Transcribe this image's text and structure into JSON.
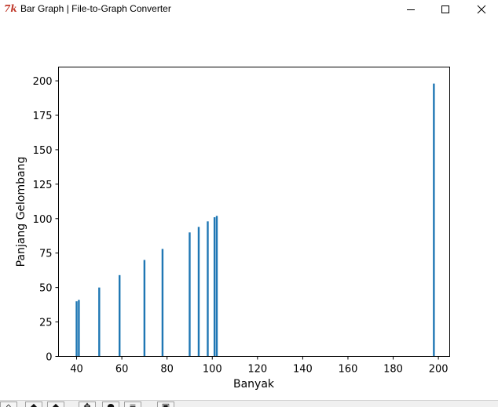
{
  "window": {
    "title": "Bar Graph | File-to-Graph Converter",
    "icon": "tk-feather-icon"
  },
  "controls": {
    "minimize": "minimize-icon",
    "maximize": "maximize-icon",
    "close": "close-icon"
  },
  "chart_data": {
    "type": "bar",
    "xlabel": "Banyak",
    "ylabel": "Panjang Gelombang",
    "xlim": [
      32,
      205
    ],
    "ylim": [
      0,
      210
    ],
    "x_ticks": [
      40,
      60,
      80,
      100,
      120,
      140,
      160,
      180,
      200
    ],
    "y_ticks": [
      0,
      25,
      50,
      75,
      100,
      125,
      150,
      175,
      200
    ],
    "bar_color": "#1f77b4",
    "grid": false,
    "series": [
      {
        "x": [
          40,
          41,
          50,
          59,
          70,
          78,
          90,
          94,
          98,
          101,
          102,
          198
        ],
        "values": [
          40,
          41,
          50,
          59,
          70,
          78,
          90,
          94,
          98,
          101,
          102,
          198
        ]
      }
    ]
  },
  "toolbar": {
    "buttons": [
      "home-icon",
      "back-icon",
      "forward-icon",
      "pan-icon",
      "zoom-icon",
      "configure-icon",
      "save-icon"
    ]
  }
}
